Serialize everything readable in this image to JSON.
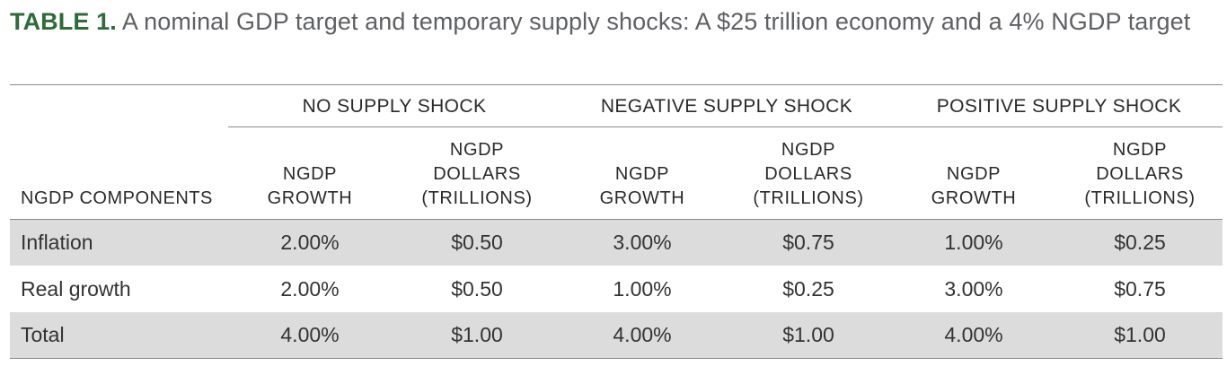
{
  "title": {
    "label": "TABLE 1.",
    "text": " A nominal GDP target and temporary supply shocks: A $25 trillion economy and a 4% NGDP target"
  },
  "table": {
    "row_header": "NGDP COMPONENTS",
    "groups": [
      "NO SUPPLY SHOCK",
      "NEGATIVE SUPPLY SHOCK",
      "POSITIVE SUPPLY SHOCK"
    ],
    "columns": [
      "NGDP\nGROWTH",
      "NGDP\nDOLLARS\n(TRILLIONS)",
      "NGDP\nGROWTH",
      "NGDP\nDOLLARS\n(TRILLIONS)",
      "NGDP\nGROWTH",
      "NGDP\nDOLLARS\n(TRILLIONS)"
    ],
    "rows": [
      {
        "label": "Inflation",
        "values": [
          "2.00%",
          "$0.50",
          "3.00%",
          "$0.75",
          "1.00%",
          "$0.25"
        ]
      },
      {
        "label": "Real growth",
        "values": [
          "2.00%",
          "$0.50",
          "1.00%",
          "$0.25",
          "3.00%",
          "$0.75"
        ]
      },
      {
        "label": "Total",
        "values": [
          "4.00%",
          "$1.00",
          "4.00%",
          "$1.00",
          "4.00%",
          "$1.00"
        ]
      }
    ]
  },
  "colors": {
    "title_label": "#2f6a3a",
    "title_text": "#5f6063",
    "shaded_row": "#dcdcdc",
    "rule": "#8a8a8a"
  }
}
